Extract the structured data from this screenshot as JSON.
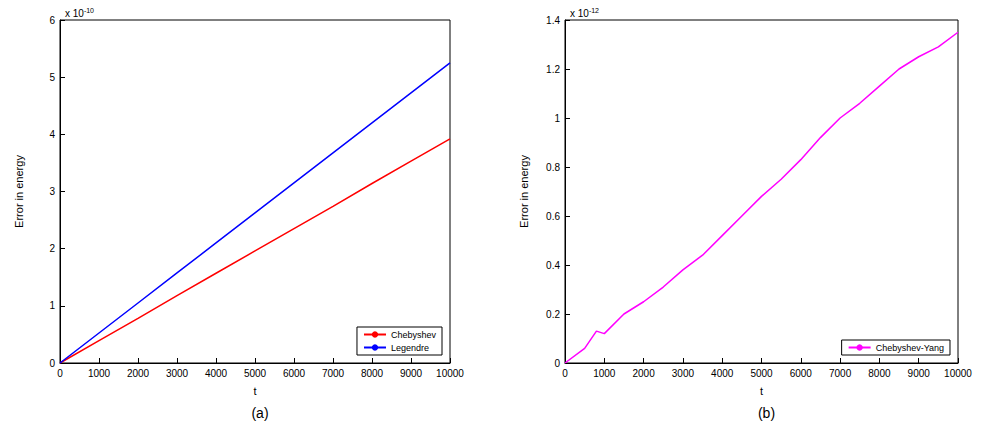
{
  "chart_data": [
    {
      "type": "line",
      "panel": "(a)",
      "xlabel": "t",
      "ylabel": "Error in energy",
      "ylabel_multiplier": {
        "base": "x 10",
        "exponent": "-10"
      },
      "x": [
        0,
        1000,
        2000,
        3000,
        4000,
        5000,
        6000,
        7000,
        8000,
        9000,
        10000
      ],
      "series": [
        {
          "name": "Chebyshev",
          "color": "#ff0000",
          "values": [
            0,
            0.39,
            0.78,
            1.18,
            1.57,
            1.96,
            2.35,
            2.74,
            3.14,
            3.53,
            3.92
          ]
        },
        {
          "name": "Legendre",
          "color": "#0000ff",
          "values": [
            0,
            0.525,
            1.05,
            1.575,
            2.1,
            2.625,
            3.15,
            3.675,
            4.2,
            4.725,
            5.25
          ]
        }
      ],
      "xlim": [
        0,
        10000
      ],
      "xticks": [
        0,
        1000,
        2000,
        3000,
        4000,
        5000,
        6000,
        7000,
        8000,
        9000,
        10000
      ],
      "ylim": [
        0,
        6
      ],
      "yticks": [
        0,
        1,
        2,
        3,
        4,
        5,
        6
      ],
      "legend": "lower right",
      "grid": false,
      "marker": "none",
      "line_style": "solid"
    },
    {
      "type": "line",
      "panel": "(b)",
      "xlabel": "t",
      "ylabel": "Error in energy",
      "ylabel_multiplier": {
        "base": "x 10",
        "exponent": "-12"
      },
      "x": [
        0,
        500,
        800,
        1000,
        1500,
        2000,
        2500,
        3000,
        3500,
        4000,
        4500,
        5000,
        5500,
        6000,
        6500,
        7000,
        7500,
        8000,
        8500,
        9000,
        9500,
        10000
      ],
      "series": [
        {
          "name": "Chebyshev-Yang",
          "color": "#ff00ff",
          "values": [
            0,
            0.06,
            0.13,
            0.12,
            0.2,
            0.25,
            0.31,
            0.38,
            0.44,
            0.52,
            0.6,
            0.68,
            0.75,
            0.83,
            0.92,
            1.0,
            1.06,
            1.13,
            1.2,
            1.25,
            1.29,
            1.35
          ]
        }
      ],
      "xlim": [
        0,
        10000
      ],
      "xticks": [
        0,
        1000,
        2000,
        3000,
        4000,
        5000,
        6000,
        7000,
        8000,
        9000,
        10000
      ],
      "ylim": [
        0,
        1.4
      ],
      "yticks": [
        0,
        0.2,
        0.4,
        0.6,
        0.8,
        1,
        1.2,
        1.4
      ],
      "legend": "lower right",
      "grid": false,
      "marker": "none",
      "line_style": "solid"
    }
  ]
}
